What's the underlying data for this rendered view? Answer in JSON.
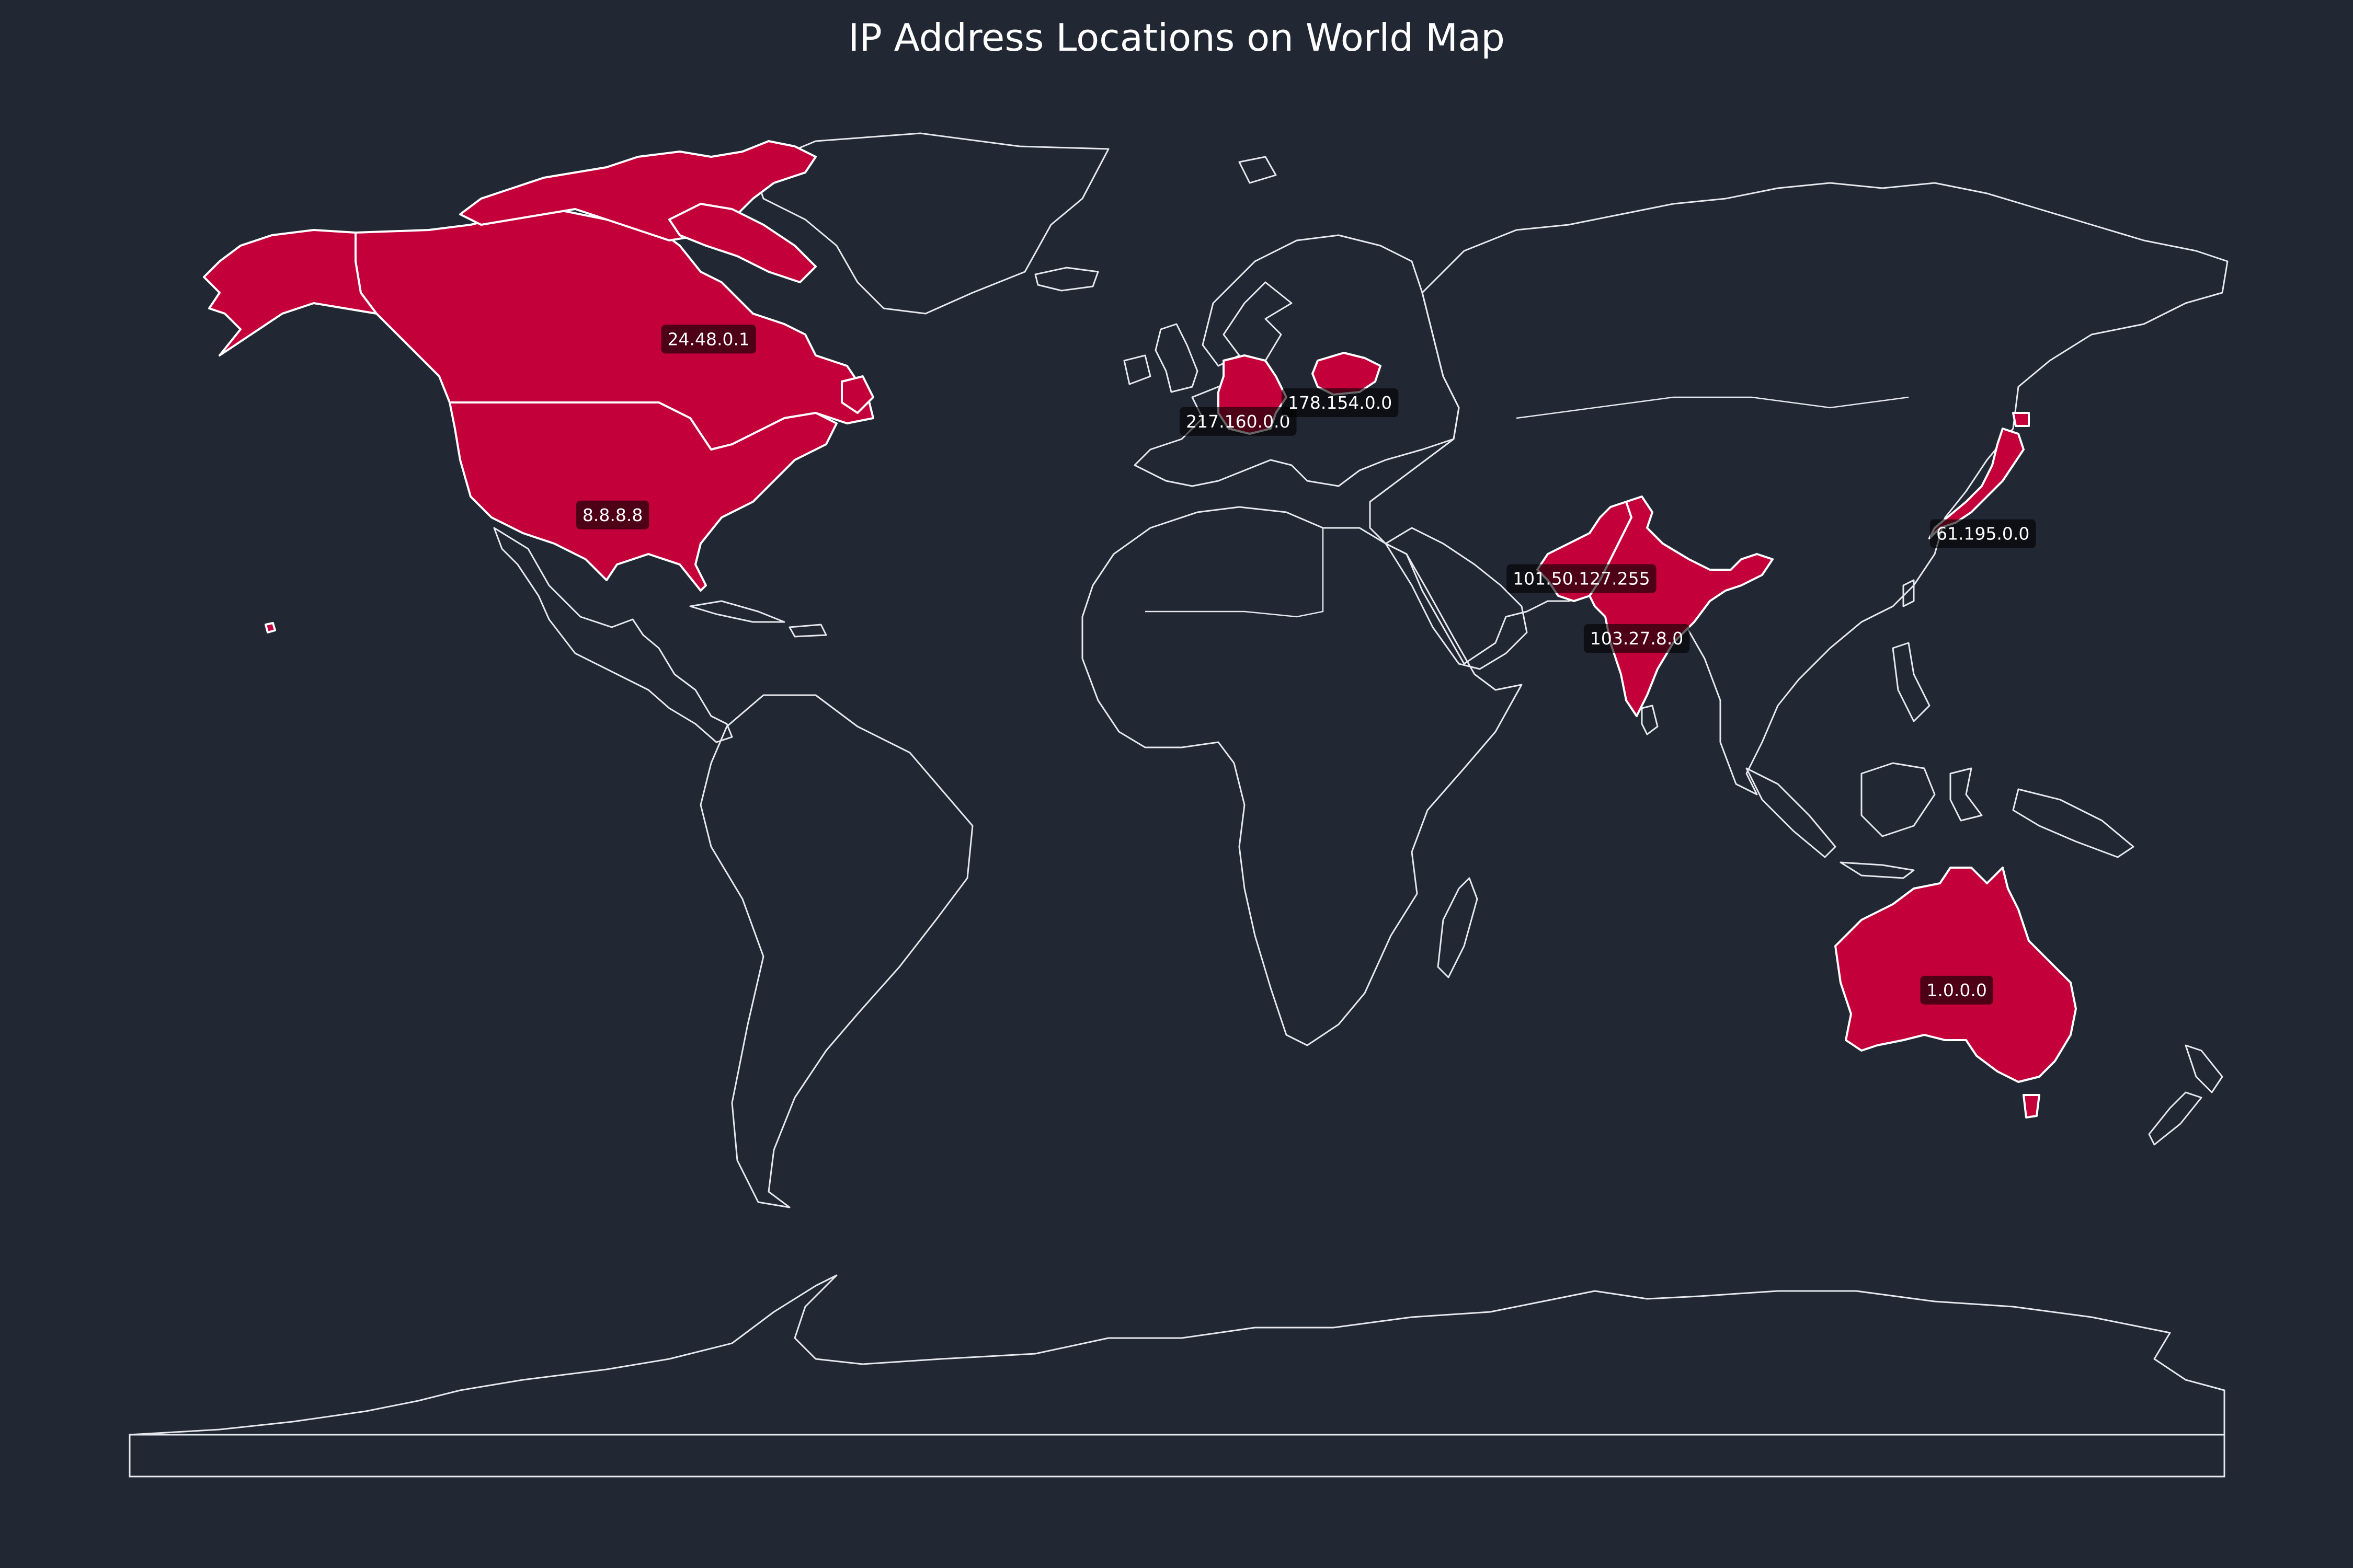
{
  "title": "IP Address Locations on World Map",
  "colors": {
    "background": "#212733",
    "highlight": "#c4003a",
    "coastline": "#e6e8ee",
    "label_bg": "#000000",
    "label_text": "#ffffff"
  },
  "projection": "equirectangular",
  "highlighted_countries": [
    "Canada",
    "United States",
    "Germany",
    "Belarus",
    "Pakistan",
    "India",
    "Japan",
    "Australia"
  ],
  "markers": [
    {
      "ip": "24.48.0.1",
      "country": "Canada",
      "lon": -80.5,
      "lat": 62.0
    },
    {
      "ip": "8.8.8.8",
      "country": "United States",
      "lon": -97.0,
      "lat": 38.5
    },
    {
      "ip": "217.160.0.0",
      "country": "Germany",
      "lon": 10.5,
      "lat": 51.0
    },
    {
      "ip": "178.154.0.0",
      "country": "Belarus",
      "lon": 28.0,
      "lat": 53.5
    },
    {
      "ip": "101.50.127.255",
      "country": "Pakistan",
      "lon": 69.5,
      "lat": 30.0
    },
    {
      "ip": "103.27.8.0",
      "country": "India",
      "lon": 79.0,
      "lat": 22.0
    },
    {
      "ip": "61.195.0.0",
      "country": "Japan",
      "lon": 138.5,
      "lat": 36.0
    },
    {
      "ip": "1.0.0.0",
      "country": "Australia",
      "lon": 134.0,
      "lat": -25.0
    }
  ]
}
